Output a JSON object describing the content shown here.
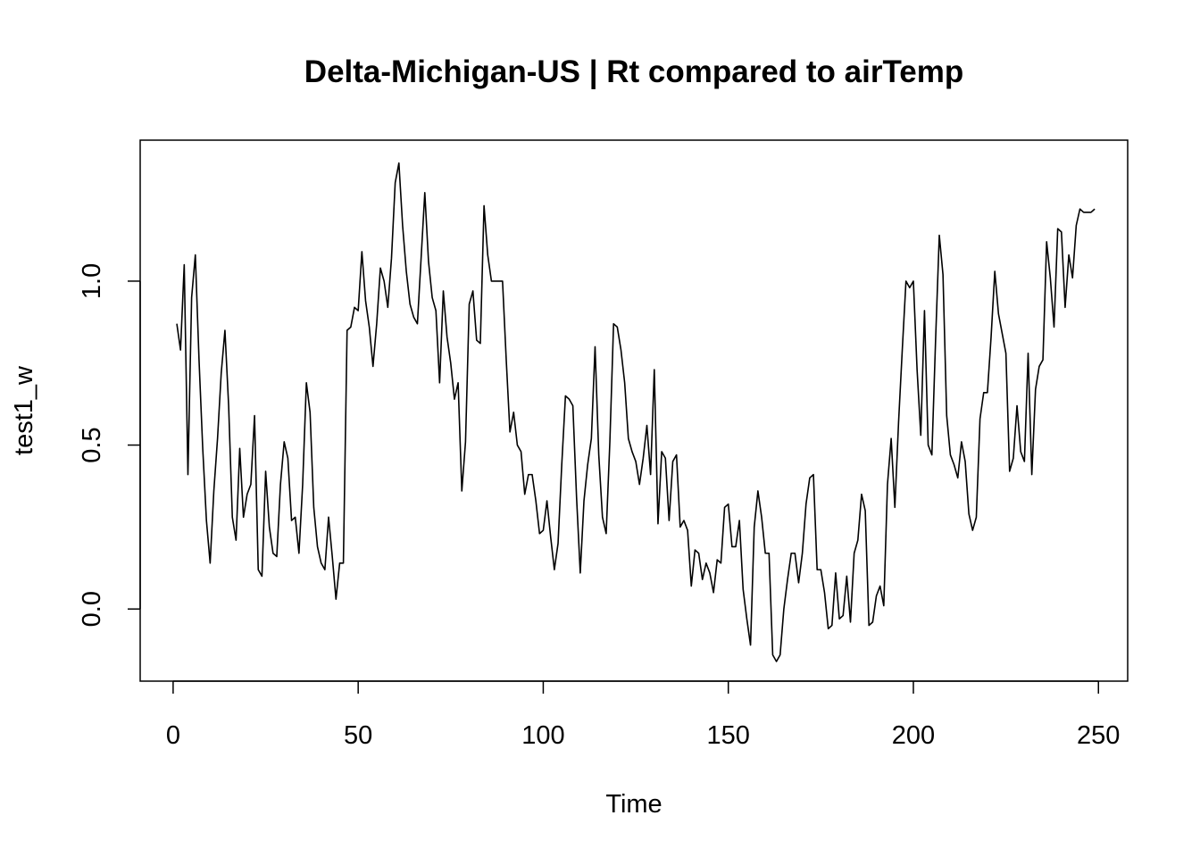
{
  "chart_data": {
    "type": "line",
    "title": "Delta-Michigan-US | Rt compared to airTemp",
    "xlabel": "Time",
    "ylabel": "test1_w",
    "xlim": [
      -8.9,
      257.9
    ],
    "ylim": [
      -0.22,
      1.43
    ],
    "grid": false,
    "legend": "none",
    "line_color": "#000000",
    "x_ticks": [
      {
        "value": 0,
        "label": "0"
      },
      {
        "value": 50,
        "label": "50"
      },
      {
        "value": 100,
        "label": "100"
      },
      {
        "value": 150,
        "label": "150"
      },
      {
        "value": 200,
        "label": "200"
      },
      {
        "value": 250,
        "label": "250"
      }
    ],
    "y_ticks": [
      {
        "value": 0.0,
        "label": "0.0"
      },
      {
        "value": 0.5,
        "label": "0.5"
      },
      {
        "value": 1.0,
        "label": "1.0"
      }
    ],
    "series": [
      {
        "x_start": 1,
        "values": [
          0.87,
          0.79,
          1.05,
          0.41,
          0.95,
          1.08,
          0.76,
          0.49,
          0.27,
          0.14,
          0.36,
          0.52,
          0.72,
          0.85,
          0.62,
          0.28,
          0.21,
          0.49,
          0.28,
          0.35,
          0.38,
          0.59,
          0.12,
          0.1,
          0.42,
          0.25,
          0.17,
          0.16,
          0.38,
          0.51,
          0.46,
          0.27,
          0.28,
          0.17,
          0.38,
          0.69,
          0.6,
          0.31,
          0.19,
          0.14,
          0.12,
          0.28,
          0.16,
          0.03,
          0.14,
          0.14,
          0.85,
          0.86,
          0.92,
          0.91,
          1.09,
          0.94,
          0.86,
          0.74,
          0.87,
          1.04,
          1.0,
          0.92,
          1.07,
          1.3,
          1.36,
          1.17,
          1.03,
          0.93,
          0.89,
          0.87,
          1.07,
          1.27,
          1.06,
          0.95,
          0.91,
          0.69,
          0.97,
          0.83,
          0.75,
          0.64,
          0.69,
          0.36,
          0.51,
          0.93,
          0.97,
          0.82,
          0.81,
          1.23,
          1.08,
          1.0,
          1.0,
          1.0,
          1.0,
          0.76,
          0.54,
          0.6,
          0.5,
          0.48,
          0.35,
          0.41,
          0.41,
          0.33,
          0.23,
          0.24,
          0.33,
          0.22,
          0.12,
          0.2,
          0.44,
          0.65,
          0.64,
          0.62,
          0.34,
          0.11,
          0.33,
          0.44,
          0.52,
          0.8,
          0.47,
          0.28,
          0.23,
          0.51,
          0.87,
          0.86,
          0.79,
          0.69,
          0.52,
          0.48,
          0.45,
          0.38,
          0.46,
          0.56,
          0.41,
          0.73,
          0.26,
          0.48,
          0.46,
          0.27,
          0.45,
          0.47,
          0.25,
          0.27,
          0.24,
          0.07,
          0.18,
          0.17,
          0.09,
          0.14,
          0.11,
          0.05,
          0.15,
          0.14,
          0.31,
          0.32,
          0.19,
          0.19,
          0.27,
          0.06,
          -0.03,
          -0.11,
          0.25,
          0.36,
          0.28,
          0.17,
          0.17,
          -0.14,
          -0.16,
          -0.14,
          0.0,
          0.09,
          0.17,
          0.17,
          0.08,
          0.17,
          0.32,
          0.4,
          0.41,
          0.12,
          0.12,
          0.05,
          -0.06,
          -0.05,
          0.11,
          -0.03,
          -0.02,
          0.1,
          -0.04,
          0.17,
          0.21,
          0.35,
          0.3,
          -0.05,
          -0.04,
          0.04,
          0.07,
          0.01,
          0.38,
          0.52,
          0.31,
          0.57,
          0.79,
          1.0,
          0.98,
          1.0,
          0.73,
          0.53,
          0.91,
          0.5,
          0.47,
          0.82,
          1.14,
          1.02,
          0.59,
          0.47,
          0.44,
          0.4,
          0.51,
          0.45,
          0.29,
          0.24,
          0.28,
          0.58,
          0.66,
          0.66,
          0.83,
          1.03,
          0.9,
          0.84,
          0.78,
          0.42,
          0.46,
          0.62,
          0.48,
          0.45,
          0.78,
          0.41,
          0.67,
          0.74,
          0.76,
          1.12,
          1.01,
          0.86,
          1.16,
          1.15,
          0.92,
          1.08,
          1.01,
          1.17,
          1.22,
          1.21,
          1.21,
          1.21,
          1.22
        ]
      }
    ]
  }
}
